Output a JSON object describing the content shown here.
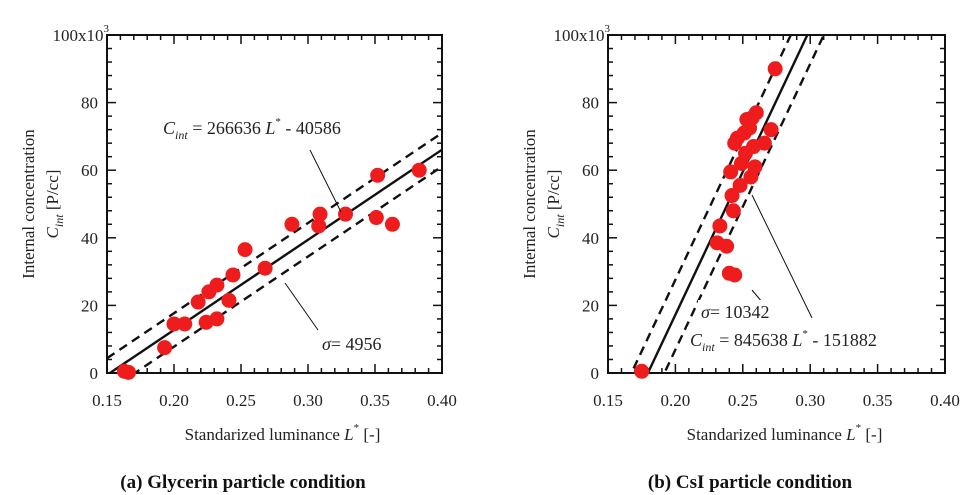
{
  "chart_data": [
    {
      "type": "scatter",
      "caption": "(a) Glycerin particle condition",
      "xlabel": "Standarized luminance L* [-]",
      "xlabel_main": "Standarized luminance",
      "xlabel_symbol": "L",
      "xlabel_unit": "[-]",
      "ylabel_line1": "Internal concentration",
      "ylabel_symbol": "C",
      "ylabel_sub": "int",
      "ylabel_unit": "[P/cc]",
      "xlim": [
        0.15,
        0.4
      ],
      "ylim": [
        0,
        100000
      ],
      "x_ticks": [
        "0.15",
        "0.20",
        "0.25",
        "0.30",
        "0.35",
        "0.40"
      ],
      "y_ticks": [
        "0",
        "20",
        "40",
        "60",
        "80",
        "100x10"
      ],
      "y_ticks_exp": "3",
      "fit": {
        "slope": 266636,
        "intercept": -40586,
        "sigma": 4956
      },
      "equation": {
        "lhs": "C",
        "lhs_sub": "int",
        "coef": "= 266636 L",
        "sup": "*",
        "tail": " - 40586"
      },
      "sigma_label": {
        "symbol": "σ",
        "text": "=  4956"
      },
      "points": [
        {
          "x": 0.163,
          "y": 500
        },
        {
          "x": 0.166,
          "y": 200
        },
        {
          "x": 0.193,
          "y": 7500
        },
        {
          "x": 0.2,
          "y": 14500
        },
        {
          "x": 0.208,
          "y": 14500
        },
        {
          "x": 0.218,
          "y": 21000
        },
        {
          "x": 0.224,
          "y": 15000
        },
        {
          "x": 0.226,
          "y": 24000
        },
        {
          "x": 0.232,
          "y": 16000
        },
        {
          "x": 0.232,
          "y": 26000
        },
        {
          "x": 0.241,
          "y": 21500
        },
        {
          "x": 0.244,
          "y": 29000
        },
        {
          "x": 0.253,
          "y": 36500
        },
        {
          "x": 0.268,
          "y": 31000
        },
        {
          "x": 0.288,
          "y": 44000
        },
        {
          "x": 0.308,
          "y": 43500
        },
        {
          "x": 0.309,
          "y": 47000
        },
        {
          "x": 0.328,
          "y": 47000
        },
        {
          "x": 0.351,
          "y": 46000
        },
        {
          "x": 0.352,
          "y": 58500
        },
        {
          "x": 0.363,
          "y": 44000
        },
        {
          "x": 0.383,
          "y": 60000
        }
      ]
    },
    {
      "type": "scatter",
      "caption": "(b) CsI particle condition",
      "xlabel": "Standarized luminance L* [-]",
      "xlabel_main": "Standarized luminance",
      "xlabel_symbol": "L",
      "xlabel_unit": "[-]",
      "ylabel_line1": "Internal concentration",
      "ylabel_symbol": "C",
      "ylabel_sub": "int",
      "ylabel_unit": "[P/cc]",
      "xlim": [
        0.15,
        0.4
      ],
      "ylim": [
        0,
        100000
      ],
      "x_ticks": [
        "0.15",
        "0.20",
        "0.25",
        "0.30",
        "0.35",
        "0.40"
      ],
      "y_ticks": [
        "0",
        "20",
        "40",
        "60",
        "80",
        "100x10"
      ],
      "y_ticks_exp": "3",
      "fit": {
        "slope": 845638,
        "intercept": -151882,
        "sigma": 10342
      },
      "equation": {
        "lhs": "C",
        "lhs_sub": "int",
        "coef": "= 845638 L",
        "sup": "*",
        "tail": " - 151882"
      },
      "sigma_label": {
        "symbol": "σ",
        "text": "= 10342"
      },
      "points": [
        {
          "x": 0.175,
          "y": 500
        },
        {
          "x": 0.231,
          "y": 38500
        },
        {
          "x": 0.233,
          "y": 43500
        },
        {
          "x": 0.238,
          "y": 37500
        },
        {
          "x": 0.24,
          "y": 29500
        },
        {
          "x": 0.244,
          "y": 29000
        },
        {
          "x": 0.241,
          "y": 59500
        },
        {
          "x": 0.242,
          "y": 52500
        },
        {
          "x": 0.243,
          "y": 48000
        },
        {
          "x": 0.244,
          "y": 68000
        },
        {
          "x": 0.246,
          "y": 69500
        },
        {
          "x": 0.248,
          "y": 55500
        },
        {
          "x": 0.249,
          "y": 62000
        },
        {
          "x": 0.251,
          "y": 71000
        },
        {
          "x": 0.252,
          "y": 65000
        },
        {
          "x": 0.253,
          "y": 75000
        },
        {
          "x": 0.255,
          "y": 72500
        },
        {
          "x": 0.256,
          "y": 58000
        },
        {
          "x": 0.257,
          "y": 75500
        },
        {
          "x": 0.258,
          "y": 67000
        },
        {
          "x": 0.259,
          "y": 61000
        },
        {
          "x": 0.26,
          "y": 77000
        },
        {
          "x": 0.266,
          "y": 68000
        },
        {
          "x": 0.271,
          "y": 72000
        },
        {
          "x": 0.274,
          "y": 90000
        }
      ]
    }
  ],
  "colors": {
    "point": "#ee1c1c",
    "line": "#111111",
    "axis": "#111111"
  }
}
